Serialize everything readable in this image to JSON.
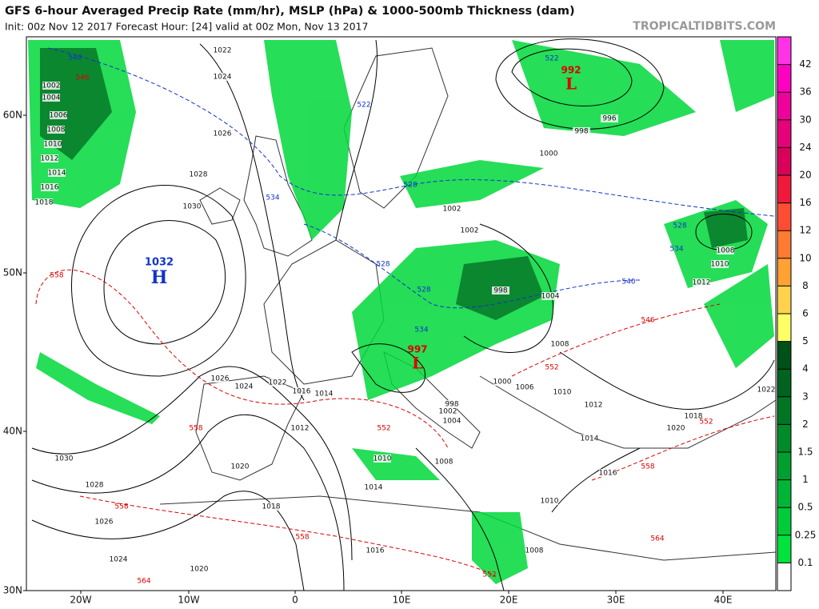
{
  "header": {
    "title": "GFS 6-hour Averaged Precip Rate (mm/hr), MSLP (hPa) & 1000-500mb Thickness (dam)",
    "subtitle": "Init: 00z Nov 12 2017   Forecast Hour: [24]   valid at 00z Mon, Nov 13 2017",
    "site": "TROPICALTIDBITS.COM"
  },
  "axes": {
    "lat_labels": [
      "60N",
      "50N",
      "40N",
      "30N"
    ],
    "lon_labels": [
      "20W",
      "10W",
      "0",
      "10E",
      "20E",
      "30E",
      "40E"
    ]
  },
  "colorbar": {
    "levels": [
      0.1,
      0.25,
      0.5,
      1,
      1.5,
      2,
      3,
      4,
      5,
      6,
      8,
      10,
      12,
      16,
      20,
      24,
      30,
      36,
      42
    ],
    "colors": [
      "#ffffff",
      "#00e33c",
      "#00cc39",
      "#00b535",
      "#009f2f",
      "#008a2a",
      "#007625",
      "#006320",
      "#00501a",
      "#ffff66",
      "#ffd24d",
      "#ffa133",
      "#ff7a33",
      "#ff4d33",
      "#f0193b",
      "#d9005a",
      "#e6007a",
      "#f0009b",
      "#ff00c3",
      "#ff33e6"
    ]
  },
  "highs": [
    {
      "value": "1032",
      "letter": "H"
    }
  ],
  "lows": [
    {
      "value": "992",
      "letter": "L"
    },
    {
      "value": "997",
      "letter": "L"
    }
  ],
  "isobar_labels": [
    1022,
    1024,
    1026,
    1028,
    1030,
    1002,
    1004,
    1006,
    1008,
    1010,
    1012,
    1014,
    1016,
    1018,
    1002,
    1002,
    998,
    1004,
    1000,
    998,
    996,
    1008,
    1010,
    1012,
    1008,
    1010,
    1012,
    1014,
    1016,
    1018,
    1020,
    1022,
    1006,
    1000,
    998,
    1002,
    1004,
    1010,
    1008,
    1014,
    1016,
    1010,
    1008,
    1018,
    1020,
    1012,
    1014,
    1016,
    1022,
    1024,
    1026,
    1030,
    1028,
    1026,
    1024,
    1020
  ],
  "thickness_labels_red": [
    546,
    558,
    558,
    558,
    558,
    564,
    552,
    564,
    558,
    552,
    546,
    552,
    552
  ],
  "thickness_labels_blue": [
    540,
    522,
    534,
    528,
    528,
    534,
    540,
    528,
    528,
    534,
    522
  ]
}
